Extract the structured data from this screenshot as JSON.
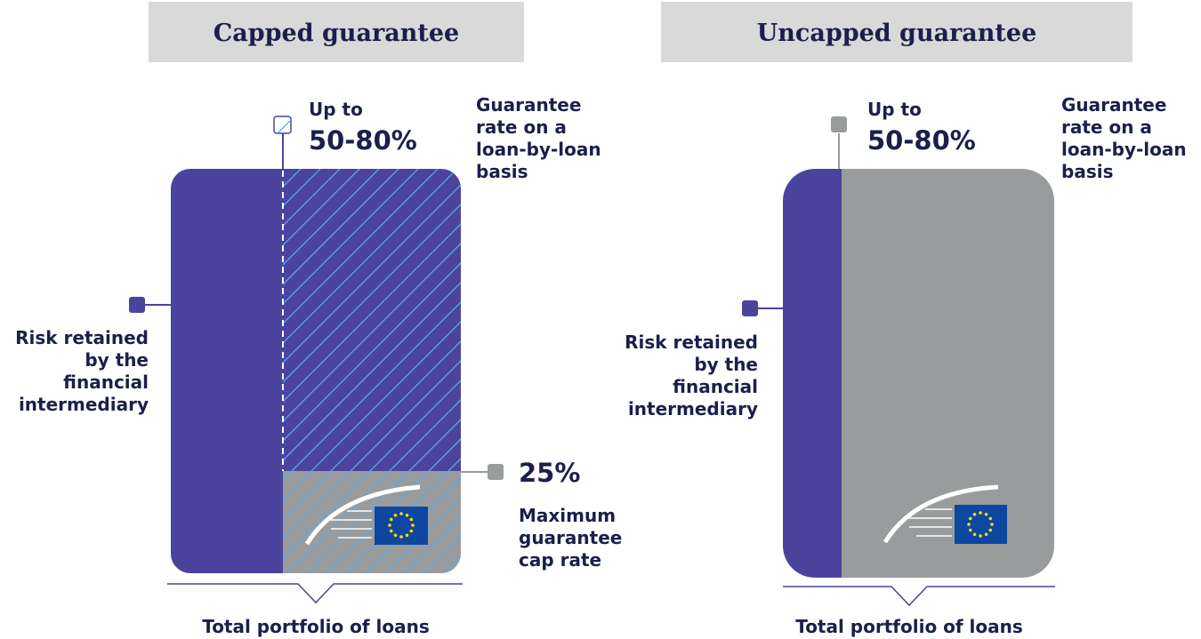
{
  "panels": [
    {
      "title": "Capped guarantee",
      "guarantee_up_to": "Up to",
      "guarantee_range": "50-80%",
      "guarantee_label": [
        "Guarantee",
        "rate on a",
        "loan-by-loan",
        "basis"
      ],
      "risk_label": [
        "Risk retained",
        "by the",
        "financial",
        "intermediary"
      ],
      "cap_value": "25%",
      "cap_label": [
        "Maximum",
        "guarantee",
        "cap rate"
      ],
      "footer": "Total portfolio of loans"
    },
    {
      "title": "Uncapped guarantee",
      "guarantee_up_to": "Up to",
      "guarantee_range": "50-80%",
      "guarantee_label": [
        "Guarantee",
        "rate on a",
        "loan-by-loan",
        "basis"
      ],
      "risk_label": [
        "Risk retained",
        "by the",
        "financial",
        "intermediary"
      ],
      "footer": "Total portfolio of loans"
    }
  ]
}
